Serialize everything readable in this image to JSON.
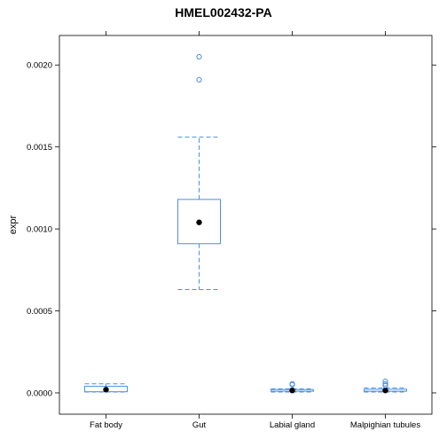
{
  "chart_data": {
    "type": "box",
    "title": "HMEL002432-PA",
    "ylabel": "expr",
    "xlabel": "",
    "ylim": [
      -0.00013,
      0.00218
    ],
    "yticks": [
      0.0,
      0.0005,
      0.001,
      0.0015,
      0.002
    ],
    "ytick_labels": [
      "0.0000",
      "0.0005",
      "0.0010",
      "0.0015",
      "0.0020"
    ],
    "categories": [
      "Fat body",
      "Gut",
      "Labial gland",
      "Malpighian tubules"
    ],
    "boxes": [
      {
        "category": "Fat body",
        "whisker_low": 5e-06,
        "q1": 7e-06,
        "median": 2e-05,
        "q3": 4e-05,
        "whisker_high": 5.5e-05,
        "outliers": []
      },
      {
        "category": "Gut",
        "whisker_low": 0.00063,
        "q1": 0.00091,
        "median": 0.00104,
        "q3": 0.00118,
        "whisker_high": 0.00156,
        "outliers": [
          0.00191,
          0.00205
        ]
      },
      {
        "category": "Labial gland",
        "whisker_low": 5e-06,
        "q1": 1e-05,
        "median": 1.5e-05,
        "q3": 2e-05,
        "whisker_high": 2.5e-05,
        "outliers": [
          5e-05,
          5.5e-05
        ]
      },
      {
        "category": "Malpighian tubules",
        "whisker_low": 5e-06,
        "q1": 1e-05,
        "median": 1.5e-05,
        "q3": 2.2e-05,
        "whisker_high": 3e-05,
        "outliers": [
          4.5e-05,
          5.5e-05,
          7e-05
        ]
      }
    ],
    "colors": {
      "box": "#4a90e2",
      "median": "#000000",
      "frame": "#000000"
    },
    "grid": false
  }
}
